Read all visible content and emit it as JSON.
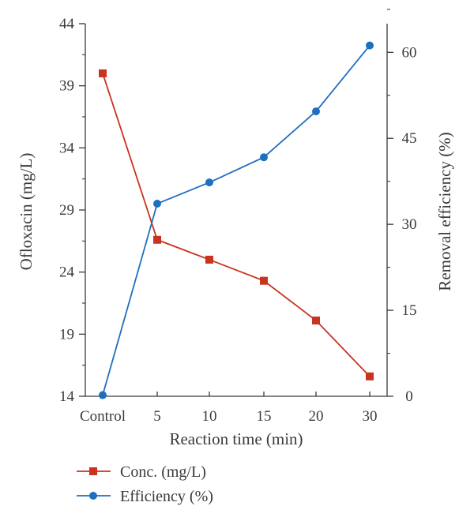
{
  "chart_data": {
    "type": "line",
    "categories": [
      "Control",
      "5",
      "10",
      "15",
      "20",
      "30"
    ],
    "xlabel": "Reaction time (min)",
    "y_left": {
      "label": "Ofloxacin (mg/L)",
      "lim": [
        14,
        44
      ],
      "ticks": [
        14,
        19,
        24,
        29,
        34,
        39,
        44
      ]
    },
    "y_right": {
      "label": "Removal efficiency (%)",
      "lim": [
        0,
        65
      ],
      "ticks": [
        0,
        15,
        30,
        45,
        60
      ]
    },
    "series": [
      {
        "name": "Conc. (mg/L)",
        "axis": "left",
        "marker": "square",
        "color": "#c8341e",
        "values": [
          40.0,
          26.6,
          25.0,
          23.3,
          20.1,
          15.6
        ]
      },
      {
        "name": "Efficiency (%)",
        "axis": "right",
        "marker": "circle",
        "color": "#1f6fc0",
        "values": [
          0.2,
          33.6,
          37.3,
          41.7,
          49.7,
          61.2
        ]
      }
    ],
    "legend_position": "bottom-left",
    "grid": false
  }
}
